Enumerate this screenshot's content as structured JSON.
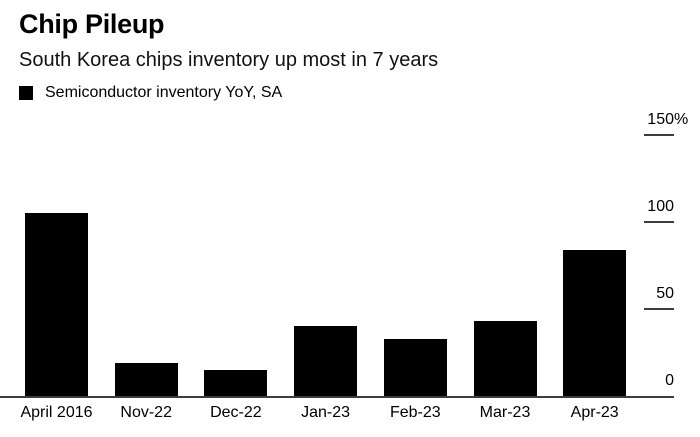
{
  "header": {
    "title": "Chip Pileup",
    "subtitle": "South Korea chips inventory up most in 7 years"
  },
  "legend": {
    "label": "Semiconductor inventory YoY, SA",
    "swatch_color": "#000000"
  },
  "chart_data": {
    "type": "bar",
    "title": "Chip Pileup",
    "subtitle": "South Korea chips inventory up most in 7 years",
    "series_name": "Semiconductor inventory YoY, SA",
    "categories": [
      "April 2016",
      "Nov-22",
      "Dec-22",
      "Jan-23",
      "Feb-23",
      "Mar-23",
      "Apr-23"
    ],
    "values": [
      105,
      19,
      15,
      40,
      33,
      43,
      84
    ],
    "unit": "%",
    "xlabel": "",
    "ylabel": "",
    "ylim": [
      0,
      150
    ],
    "yticks": [
      {
        "value": 0,
        "label": "0"
      },
      {
        "value": 50,
        "label": "50"
      },
      {
        "value": 100,
        "label": "100"
      },
      {
        "value": 150,
        "label": "150%"
      }
    ],
    "legend_position": "top-left",
    "axis_side": "right",
    "grid": false,
    "bar_color": "#000000",
    "axis_line_color": "#3d3d3d"
  }
}
